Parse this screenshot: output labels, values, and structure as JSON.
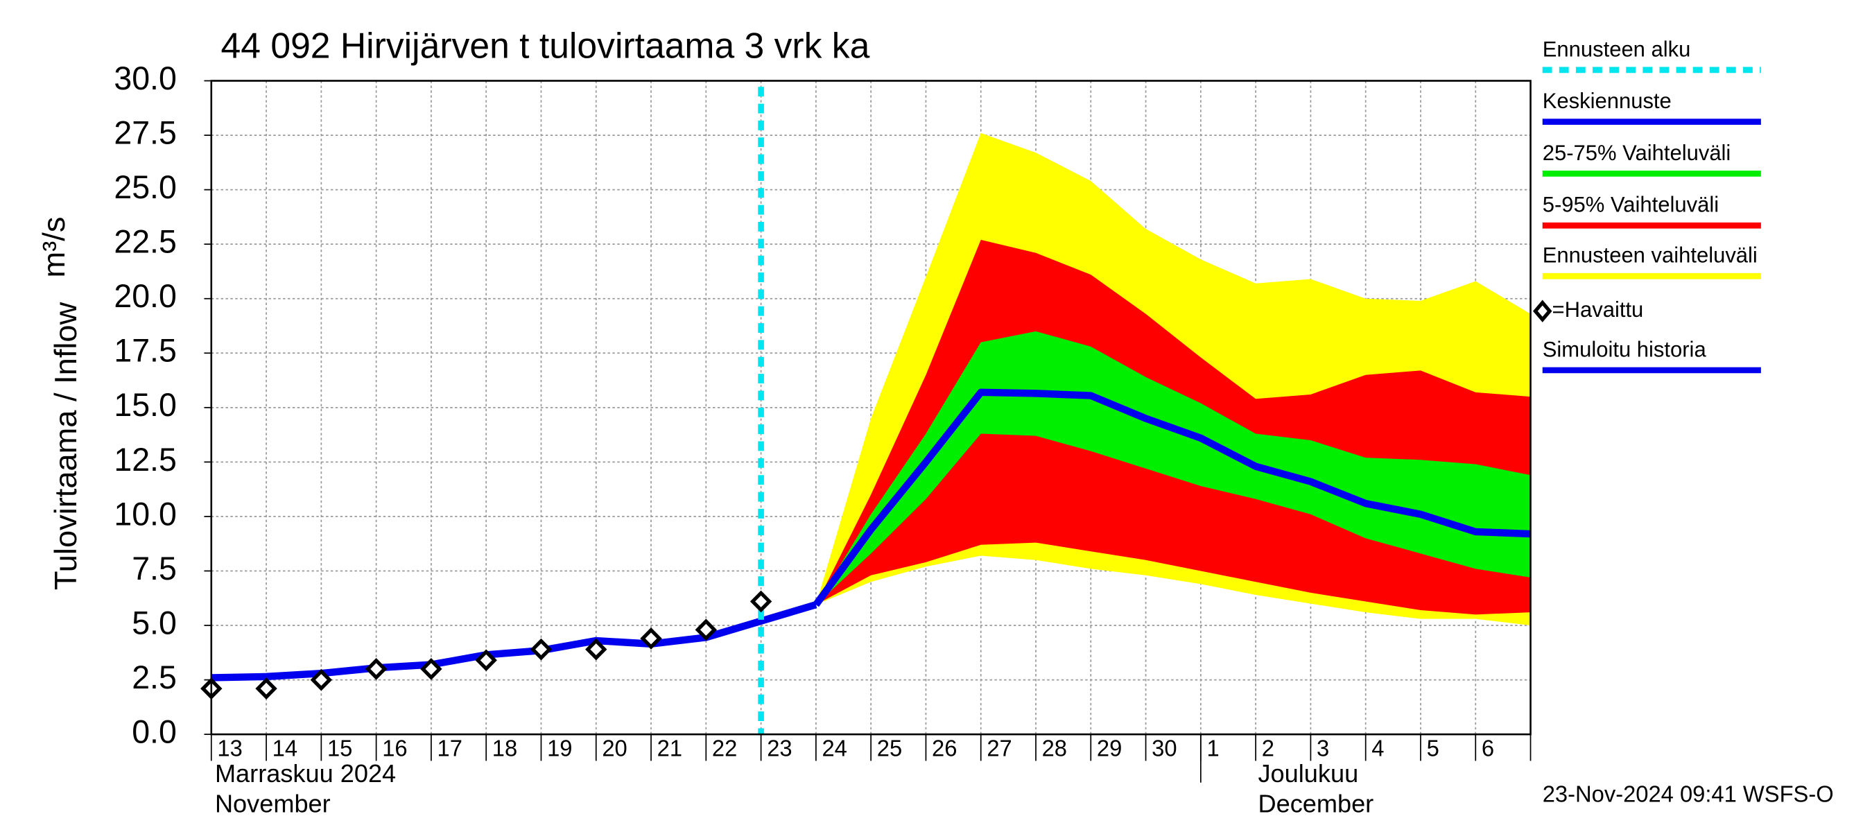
{
  "chart_data": {
    "type": "line",
    "title": "44 092 Hirvijärven t tulovirtaama 3 vrk ka",
    "y_label": "Tulovirtaama / Inflow",
    "y_unit": "m³/s",
    "categories": [
      "13",
      "14",
      "15",
      "16",
      "17",
      "18",
      "19",
      "20",
      "21",
      "22",
      "23",
      "24",
      "25",
      "26",
      "27",
      "28",
      "29",
      "30",
      "1",
      "2",
      "3",
      "4",
      "5",
      "6",
      null
    ],
    "months": [
      {
        "index": 0,
        "label": "Marraskuu 2024",
        "label_en": "November"
      },
      {
        "index": 18,
        "label": "Joulukuu",
        "label_en": "December"
      }
    ],
    "ylim": [
      0,
      30
    ],
    "yticks": [
      {
        "value": 0,
        "label": "0.0"
      },
      2.5,
      {
        "value": 5,
        "label": "5.0"
      },
      7.5,
      {
        "value": 10,
        "label": "10.0"
      },
      12.5,
      {
        "value": 15,
        "label": "15.0"
      },
      17.5,
      {
        "value": 20,
        "label": "20.0"
      },
      22.5,
      {
        "value": 25,
        "label": "25.0"
      },
      27.5,
      {
        "value": 30,
        "label": "30.0"
      }
    ],
    "grid": true,
    "forecast_start": {
      "name": "Ennusteen alku",
      "index": 10,
      "color": "#00e5ee"
    },
    "series": [
      {
        "name": "Ennusteen vaihteluväli",
        "color": "#ffff00",
        "upper": [
          null,
          null,
          null,
          null,
          null,
          null,
          null,
          null,
          null,
          null,
          null,
          5.95,
          14.5,
          21.0,
          27.6,
          26.7,
          25.4,
          23.2,
          21.8,
          20.7,
          20.9,
          20.0,
          19.9,
          20.8,
          19.3
        ],
        "lower": [
          null,
          null,
          null,
          null,
          null,
          null,
          null,
          null,
          null,
          null,
          null,
          5.95,
          7.0,
          7.7,
          8.2,
          8.0,
          7.6,
          7.3,
          6.9,
          6.4,
          6.0,
          5.6,
          5.3,
          5.3,
          5.0
        ]
      },
      {
        "name": "5-95% Vaihteluväli",
        "color": "#ff0000",
        "upper": [
          null,
          null,
          null,
          null,
          null,
          null,
          null,
          null,
          null,
          null,
          null,
          5.95,
          11.0,
          16.5,
          22.7,
          22.1,
          21.1,
          19.3,
          17.3,
          15.4,
          15.6,
          16.5,
          16.7,
          15.7,
          15.5
        ],
        "lower": [
          null,
          null,
          null,
          null,
          null,
          null,
          null,
          null,
          null,
          null,
          null,
          5.95,
          7.3,
          7.9,
          8.7,
          8.8,
          8.4,
          8.0,
          7.5,
          7.0,
          6.5,
          6.1,
          5.7,
          5.5,
          5.6
        ]
      },
      {
        "name": "25-75% Vaihteluväli",
        "color": "#00ee00",
        "upper": [
          null,
          null,
          null,
          null,
          null,
          null,
          null,
          null,
          null,
          null,
          null,
          5.95,
          10.1,
          13.8,
          18.0,
          18.5,
          17.8,
          16.4,
          15.2,
          13.8,
          13.5,
          12.7,
          12.6,
          12.4,
          11.9
        ],
        "lower": [
          null,
          null,
          null,
          null,
          null,
          null,
          null,
          null,
          null,
          null,
          null,
          5.95,
          8.3,
          10.8,
          13.8,
          13.7,
          13.0,
          12.2,
          11.4,
          10.8,
          10.1,
          9.0,
          8.3,
          7.6,
          7.2
        ]
      },
      {
        "name": "Keskiennuste",
        "color": "#0000ee",
        "values": [
          null,
          null,
          null,
          null,
          null,
          null,
          null,
          null,
          null,
          null,
          null,
          5.95,
          9.4,
          12.5,
          15.7,
          15.65,
          15.55,
          14.5,
          13.6,
          12.3,
          11.6,
          10.6,
          10.1,
          9.3,
          9.2
        ]
      },
      {
        "name": "Simuloitu historia",
        "color": "#0000ee",
        "values": [
          2.6,
          2.65,
          2.8,
          3.05,
          3.2,
          3.65,
          3.85,
          4.3,
          4.15,
          4.45,
          5.2,
          5.95,
          null,
          null,
          null,
          null,
          null,
          null,
          null,
          null,
          null,
          null,
          null,
          null,
          null
        ]
      },
      {
        "name": "=Havaittu",
        "color": "#000000",
        "values": [
          2.1,
          2.1,
          2.5,
          3.0,
          3.0,
          3.4,
          3.9,
          3.9,
          4.4,
          4.8,
          6.1,
          null,
          null,
          null,
          null,
          null,
          null,
          null,
          null,
          null,
          null,
          null,
          null,
          null,
          null
        ]
      }
    ],
    "timestamp": "23-Nov-2024 09:41 WSFS-O"
  }
}
